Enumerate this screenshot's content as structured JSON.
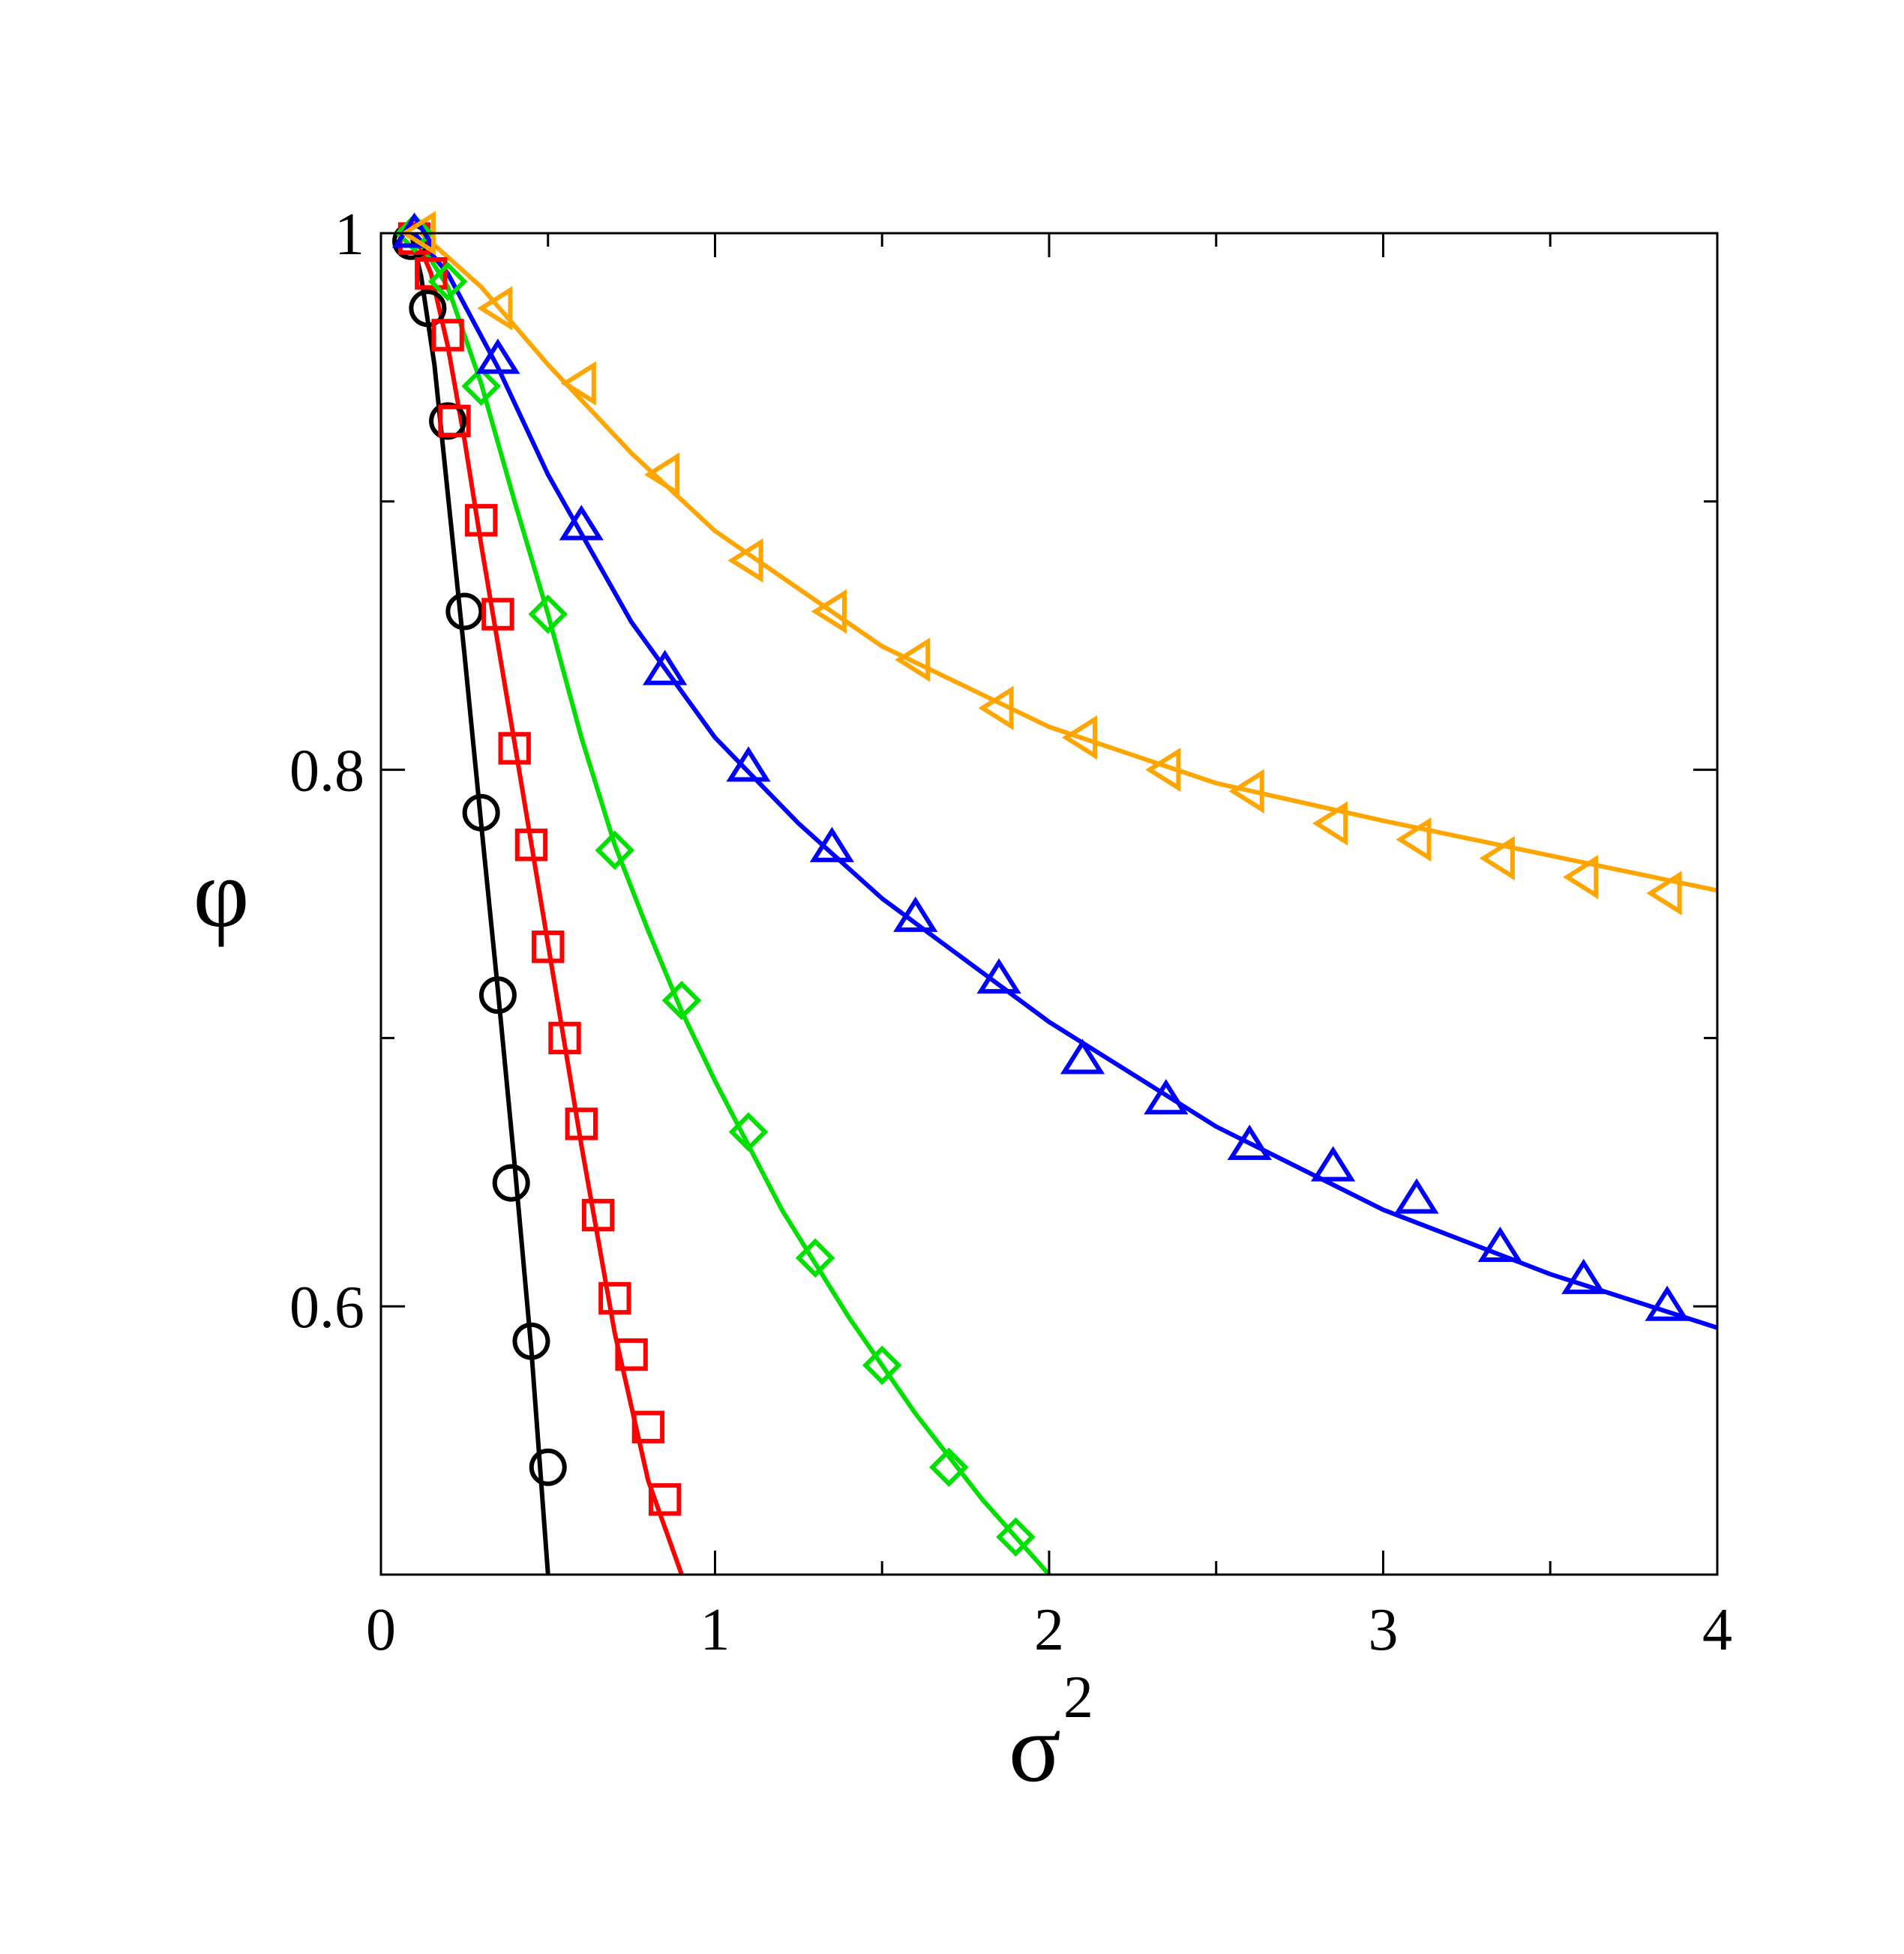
{
  "chart_data": {
    "type": "scatter",
    "xlabel": "σ",
    "xlabel_superscript": "2",
    "ylabel": "φ",
    "xlim": [
      0,
      4
    ],
    "ylim": [
      0.5,
      1.0
    ],
    "x_ticks": [
      0,
      1,
      2,
      3,
      4
    ],
    "x_tick_labels": [
      "0",
      "1",
      "2",
      "3",
      "4"
    ],
    "x_minor_ticks": [
      0.5,
      1.5,
      2.5,
      3.5
    ],
    "y_ticks": [
      0.6,
      0.8,
      1.0
    ],
    "y_tick_labels": [
      "0.6",
      "0.8",
      "1"
    ],
    "y_minor_ticks": [
      0.7,
      0.9
    ],
    "grid": false,
    "legend": "none",
    "series": [
      {
        "color": "#000000",
        "marker": "circle",
        "points": {
          "x": [
            0.09,
            0.14,
            0.2,
            0.25,
            0.3,
            0.35,
            0.39,
            0.45,
            0.5
          ],
          "y": [
            0.997,
            0.972,
            0.93,
            0.859,
            0.784,
            0.716,
            0.646,
            0.587,
            0.54
          ]
        },
        "curve": {
          "x": [
            0.09,
            0.12,
            0.16,
            0.2,
            0.25,
            0.3,
            0.35,
            0.4,
            0.45,
            0.5
          ],
          "y": [
            1.0,
            0.984,
            0.951,
            0.903,
            0.843,
            0.78,
            0.718,
            0.653,
            0.584,
            0.5
          ]
        }
      },
      {
        "color": "#ff0000",
        "marker": "square",
        "points": {
          "x": [
            0.1,
            0.15,
            0.2,
            0.22,
            0.3,
            0.35,
            0.4,
            0.45,
            0.5,
            0.55,
            0.6,
            0.65,
            0.7,
            0.75,
            0.8,
            0.85
          ],
          "y": [
            0.998,
            0.985,
            0.962,
            0.93,
            0.893,
            0.858,
            0.808,
            0.772,
            0.734,
            0.7,
            0.668,
            0.634,
            0.603,
            0.582,
            0.555,
            0.528
          ]
        },
        "curve": {
          "x": [
            0.1,
            0.15,
            0.2,
            0.25,
            0.3,
            0.4,
            0.5,
            0.6,
            0.7,
            0.8,
            0.9
          ],
          "y": [
            1.0,
            0.985,
            0.958,
            0.923,
            0.884,
            0.81,
            0.735,
            0.66,
            0.59,
            0.535,
            0.5
          ]
        }
      },
      {
        "color": "#00e000",
        "marker": "diamond",
        "points": {
          "x": [
            0.1,
            0.2,
            0.3,
            0.5,
            0.7,
            0.9,
            1.1,
            1.3,
            1.5,
            1.7,
            1.9
          ],
          "y": [
            1.0,
            0.982,
            0.943,
            0.858,
            0.77,
            0.714,
            0.665,
            0.618,
            0.578,
            0.54,
            0.514
          ]
        },
        "curve": {
          "x": [
            0.1,
            0.2,
            0.3,
            0.4,
            0.5,
            0.6,
            0.7,
            0.8,
            0.9,
            1.0,
            1.2,
            1.4,
            1.6,
            1.8,
            2.0
          ],
          "y": [
            1.0,
            0.98,
            0.944,
            0.9,
            0.858,
            0.812,
            0.772,
            0.74,
            0.71,
            0.684,
            0.636,
            0.596,
            0.56,
            0.528,
            0.5
          ]
        }
      },
      {
        "color": "#0000ff",
        "marker": "triangle-up",
        "points": {
          "x": [
            0.1,
            0.35,
            0.6,
            0.85,
            1.1,
            1.35,
            1.6,
            1.85,
            2.1,
            2.35,
            2.6,
            2.85,
            3.1,
            3.35,
            3.6,
            3.85
          ],
          "y": [
            1.0,
            0.953,
            0.891,
            0.837,
            0.801,
            0.771,
            0.745,
            0.722,
            0.692,
            0.677,
            0.66,
            0.652,
            0.64,
            0.622,
            0.61,
            0.6
          ]
        },
        "curve": {
          "x": [
            0.1,
            0.2,
            0.35,
            0.5,
            0.75,
            1.0,
            1.25,
            1.5,
            2.0,
            2.5,
            3.0,
            3.5,
            4.0
          ],
          "y": [
            1.0,
            0.985,
            0.95,
            0.91,
            0.855,
            0.812,
            0.78,
            0.752,
            0.706,
            0.667,
            0.636,
            0.612,
            0.592
          ]
        }
      },
      {
        "color": "#ffa500",
        "marker": "triangle-left",
        "points": {
          "x": [
            0.12,
            0.35,
            0.6,
            0.85,
            1.1,
            1.35,
            1.6,
            1.85,
            2.1,
            2.35,
            2.6,
            2.85,
            3.1,
            3.35,
            3.6,
            3.85
          ],
          "y": [
            1.0,
            0.972,
            0.944,
            0.91,
            0.878,
            0.859,
            0.841,
            0.823,
            0.812,
            0.8,
            0.792,
            0.78,
            0.774,
            0.767,
            0.76,
            0.754
          ]
        },
        "curve": {
          "x": [
            0.12,
            0.3,
            0.5,
            0.75,
            1.0,
            1.5,
            2.0,
            2.5,
            3.0,
            3.5,
            4.0
          ],
          "y": [
            1.0,
            0.98,
            0.951,
            0.918,
            0.889,
            0.846,
            0.816,
            0.795,
            0.781,
            0.768,
            0.755
          ]
        }
      }
    ]
  }
}
